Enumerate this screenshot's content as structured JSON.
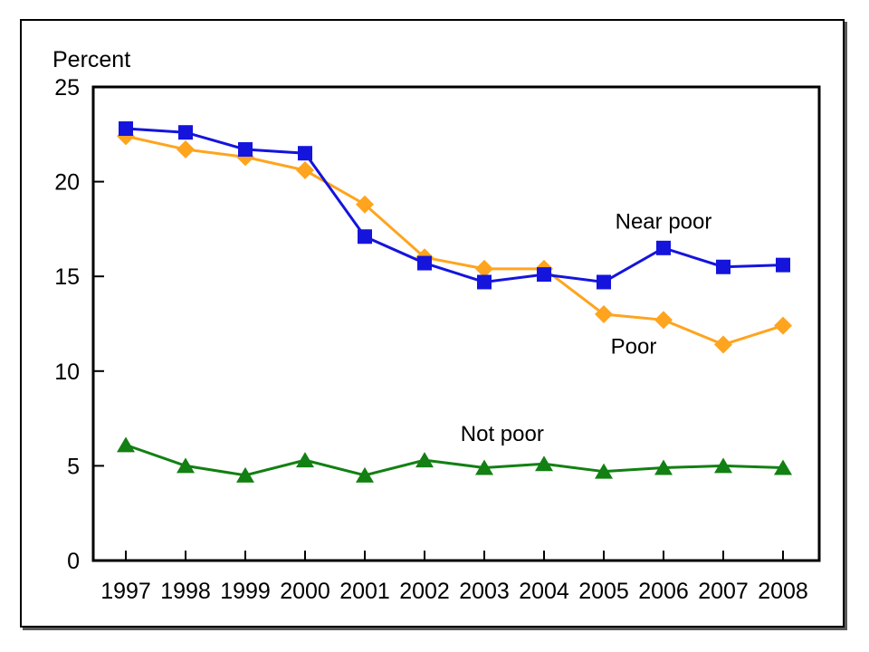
{
  "chart_data": {
    "type": "line",
    "title": "",
    "ylabel": "Percent",
    "xlabel": "",
    "categories": [
      "1997",
      "1998",
      "1999",
      "2000",
      "2001",
      "2002",
      "2003",
      "2004",
      "2005",
      "2006",
      "2007",
      "2008"
    ],
    "y_ticks": [
      0,
      5,
      10,
      15,
      20,
      25
    ],
    "ylim": [
      0,
      25
    ],
    "grid": false,
    "legend_position": "inline-labels-on-plot",
    "axis_color": "#000000",
    "background_color": "#ffffff",
    "series": [
      {
        "name": "Near poor",
        "marker": "square",
        "color": "#1414dd",
        "values": [
          22.8,
          22.6,
          21.7,
          21.5,
          17.1,
          15.7,
          14.7,
          15.1,
          14.7,
          16.5,
          15.5,
          15.6
        ],
        "label_anchor": {
          "x_index": 9.0,
          "y_value": 17.9
        }
      },
      {
        "name": "Poor",
        "marker": "diamond",
        "color": "#ffa41e",
        "values": [
          22.4,
          21.7,
          21.3,
          20.6,
          18.8,
          16.0,
          15.4,
          15.4,
          13.0,
          12.7,
          11.4,
          12.4
        ],
        "label_anchor": {
          "x_index": 8.5,
          "y_value": 11.3
        }
      },
      {
        "name": "Not poor",
        "marker": "triangle",
        "color": "#128012",
        "values": [
          6.1,
          5.0,
          4.5,
          5.3,
          4.5,
          5.3,
          4.9,
          5.1,
          4.7,
          4.9,
          5.0,
          4.9
        ],
        "label_anchor": {
          "x_index": 6.3,
          "y_value": 6.7
        }
      }
    ]
  }
}
